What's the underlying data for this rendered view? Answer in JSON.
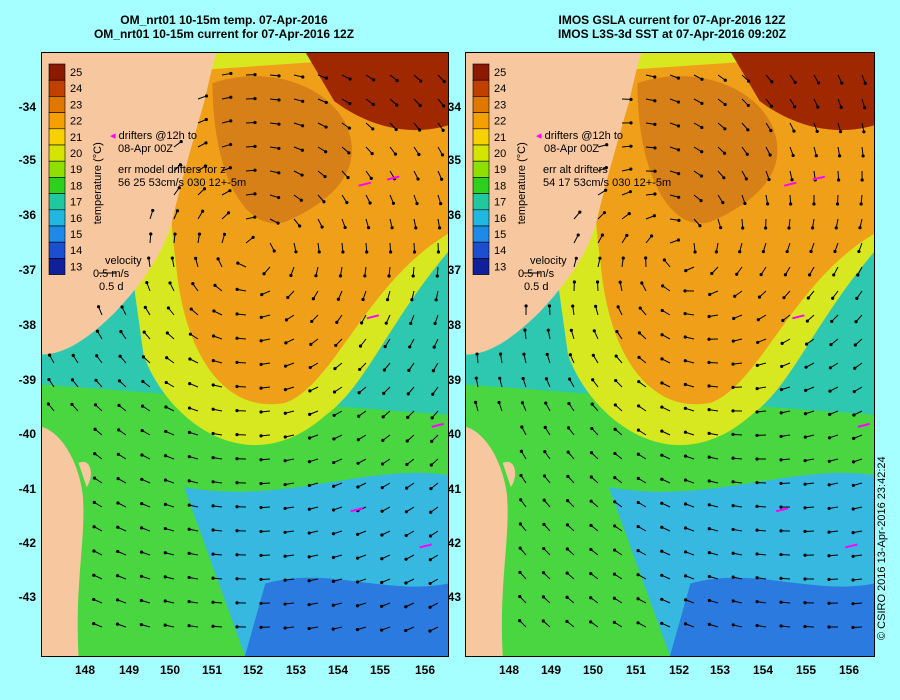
{
  "left_panel": {
    "title_line1": "OM_nrt01 10-15m temp. 07-Apr-2016",
    "title_line2": "OM_nrt01 10-15m current for 07-Apr-2016 12Z",
    "drifters_note_line1": "drifters @12h to",
    "drifters_note_line2": "08-Apr 00Z",
    "err_line1": "err model drifters for z",
    "err_line2": "56 25 53cm/s 030 12+-5m",
    "velocity_label": "velocity",
    "velocity_speed": "0.5 m/s",
    "velocity_time": "0.5 d"
  },
  "right_panel": {
    "title_line1": "IMOS GSLA current for 07-Apr-2016 12Z",
    "title_line2": "IMOS L3S-3d SST at 07-Apr-2016 09:20Z",
    "drifters_note_line1": "drifters @12h to",
    "drifters_note_line2": "08-Apr 00Z",
    "err_line1": "err alt drifters",
    "err_line2": "54 17 53cm/s 030 12+-5m",
    "velocity_label": "velocity",
    "velocity_speed": "0.5 m/s",
    "velocity_time": "0.5 d"
  },
  "colorbar": {
    "label": "temperature (°C)",
    "ticks": [
      "25",
      "24",
      "23",
      "22",
      "21",
      "20",
      "19",
      "18",
      "17",
      "16",
      "15",
      "14",
      "13"
    ],
    "colors": [
      "#8b1a00",
      "#c04000",
      "#e07800",
      "#f4a000",
      "#f8d200",
      "#d4e600",
      "#8ee000",
      "#2ed020",
      "#20c8a0",
      "#20b8e0",
      "#1e8ae8",
      "#1a50d0",
      "#10209a"
    ]
  },
  "axes": {
    "lat_labels": [
      "-34",
      "-35",
      "-36",
      "-37",
      "-38",
      "-39",
      "-40",
      "-41",
      "-42",
      "-43"
    ],
    "lon_labels": [
      "148",
      "149",
      "150",
      "151",
      "152",
      "153",
      "154",
      "155",
      "156"
    ]
  },
  "credit": "© CSIRO 2016   13-Apr-2016 23:42:24",
  "colors": {
    "background": "#a6ffff",
    "land": "#f7c8a0",
    "drifter": "#ff00ff",
    "arrow": "#000000"
  }
}
